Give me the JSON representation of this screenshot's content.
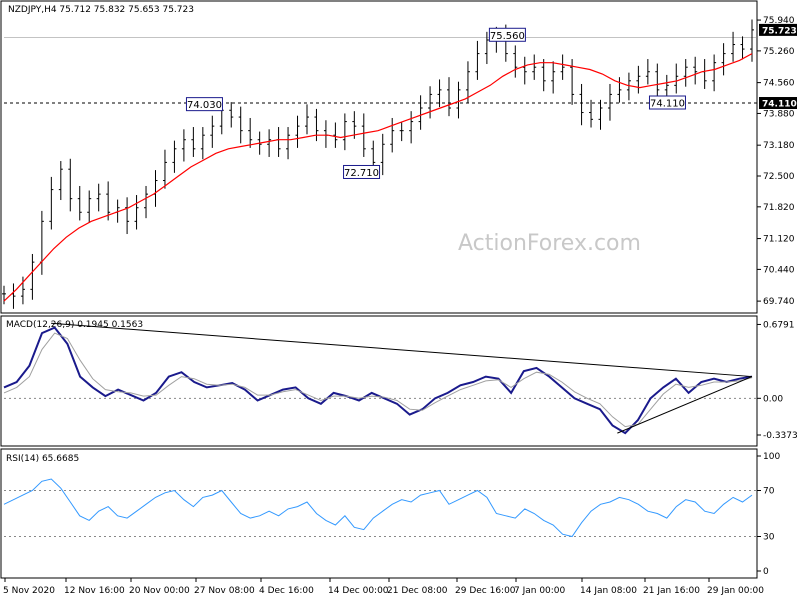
{
  "chart_data": [
    {
      "type": "ohlc",
      "panel": "price",
      "header": "NZDJPY,H4  75.712 75.832 75.653 75.723",
      "watermark": "ActionForex.com",
      "ylim": [
        69.5,
        76.25
      ],
      "y_ticks": [
        "75.940",
        "75.260",
        "74.560",
        "73.880",
        "73.180",
        "72.500",
        "71.820",
        "71.120",
        "70.440",
        "69.740"
      ],
      "last_price_tag": "75.723",
      "support_tag": "74.110",
      "support_level": 74.11,
      "annotations": [
        "75.560",
        "74.030",
        "72.710",
        "74.110"
      ],
      "series": [
        {
          "name": "",
          "color": "#000000",
          "values": [
            69.9,
            69.85,
            70.0,
            70.6,
            71.5,
            72.2,
            72.65,
            72.0,
            71.7,
            72.0,
            72.1,
            71.7,
            71.8,
            71.5,
            71.8,
            72.1,
            72.4,
            72.8,
            73.1,
            73.3,
            73.1,
            73.4,
            73.6,
            73.95,
            73.8,
            73.5,
            73.3,
            73.2,
            73.3,
            73.1,
            73.4,
            73.6,
            73.8,
            73.5,
            73.4,
            73.3,
            73.7,
            73.6,
            73.1,
            72.8,
            73.2,
            73.5,
            73.5,
            73.7,
            74.0,
            74.3,
            74.4,
            74.0,
            74.4,
            74.8,
            75.2,
            75.5,
            75.56,
            75.2,
            74.9,
            74.8,
            74.9,
            74.6,
            74.8,
            74.9,
            74.3,
            73.9,
            73.75,
            74.0,
            74.3,
            74.4,
            74.6,
            74.7,
            74.8,
            74.4,
            74.5,
            74.7,
            74.9,
            74.8,
            74.6,
            75.0,
            75.2,
            75.4,
            75.3,
            75.723
          ]
        },
        {
          "name": "",
          "color": "#ff0000",
          "values": [
            69.74,
            70.0,
            70.3,
            70.6,
            70.9,
            71.15,
            71.35,
            71.5,
            71.6,
            71.7,
            71.8,
            71.95,
            72.1,
            72.3,
            72.5,
            72.7,
            72.85,
            73.0,
            73.1,
            73.15,
            73.2,
            73.25,
            73.3,
            73.3,
            73.35,
            73.4,
            73.4,
            73.35,
            73.4,
            73.45,
            73.5,
            73.6,
            73.7,
            73.8,
            73.9,
            74.0,
            74.1,
            74.2,
            74.35,
            74.5,
            74.7,
            74.85,
            74.95,
            75.0,
            75.0,
            74.95,
            74.9,
            74.85,
            74.75,
            74.6,
            74.5,
            74.45,
            74.5,
            74.55,
            74.6,
            74.7,
            74.8,
            74.85,
            74.95,
            75.05,
            75.2
          ]
        }
      ]
    },
    {
      "type": "line",
      "panel": "macd",
      "header": "MACD(12,26,9) 0.1945 0.1563",
      "ylim": [
        -0.42,
        0.72
      ],
      "y_ticks": [
        "0.6791",
        "0.00",
        "-0.3373"
      ],
      "zero_level": 0.0,
      "series": [
        {
          "name": "",
          "color": "#1a1a8c",
          "values": [
            0.1,
            0.15,
            0.3,
            0.6,
            0.65,
            0.5,
            0.2,
            0.1,
            0.02,
            0.08,
            0.03,
            -0.02,
            0.05,
            0.2,
            0.24,
            0.15,
            0.1,
            0.12,
            0.14,
            0.08,
            -0.02,
            0.03,
            0.08,
            0.1,
            0.0,
            -0.05,
            0.05,
            0.02,
            -0.02,
            0.05,
            0.0,
            -0.05,
            -0.15,
            -0.1,
            0.0,
            0.05,
            0.12,
            0.15,
            0.2,
            0.18,
            0.05,
            0.25,
            0.28,
            0.2,
            0.1,
            0.0,
            -0.05,
            -0.1,
            -0.25,
            -0.32,
            -0.2,
            0.0,
            0.1,
            0.18,
            0.05,
            0.15,
            0.18,
            0.15,
            0.18,
            0.2
          ]
        },
        {
          "name": "",
          "color": "#a0a0a0",
          "values": [
            0.05,
            0.1,
            0.2,
            0.45,
            0.6,
            0.55,
            0.35,
            0.18,
            0.08,
            0.06,
            0.05,
            0.02,
            0.03,
            0.12,
            0.2,
            0.18,
            0.13,
            0.12,
            0.13,
            0.1,
            0.03,
            0.03,
            0.06,
            0.08,
            0.03,
            -0.02,
            0.02,
            0.02,
            0.0,
            0.02,
            0.01,
            -0.02,
            -0.1,
            -0.11,
            -0.04,
            0.02,
            0.08,
            0.12,
            0.16,
            0.17,
            0.1,
            0.18,
            0.24,
            0.22,
            0.15,
            0.06,
            0.0,
            -0.05,
            -0.17,
            -0.26,
            -0.24,
            -0.1,
            0.04,
            0.13,
            0.1,
            0.12,
            0.15,
            0.15,
            0.16,
            0.19
          ]
        }
      ],
      "trendlines": [
        {
          "from": [
            0.063,
            0.69
          ],
          "to": [
            1.0,
            0.2
          ]
        },
        {
          "from": [
            0.82,
            -0.32
          ],
          "to": [
            1.0,
            0.2
          ]
        }
      ]
    },
    {
      "type": "line",
      "panel": "rsi",
      "header": "RSI(14) 65.6685",
      "ylim": [
        0,
        100
      ],
      "y_ticks": [
        "100",
        "70",
        "30",
        "0"
      ],
      "levels": [
        70,
        30
      ],
      "series": [
        {
          "name": "",
          "color": "#3399ff",
          "values": [
            58,
            62,
            66,
            70,
            78,
            80,
            72,
            60,
            48,
            44,
            52,
            56,
            48,
            46,
            52,
            58,
            64,
            68,
            70,
            62,
            56,
            64,
            66,
            70,
            60,
            50,
            46,
            48,
            52,
            48,
            54,
            56,
            60,
            50,
            44,
            40,
            48,
            38,
            36,
            46,
            52,
            58,
            62,
            60,
            66,
            68,
            70,
            58,
            62,
            66,
            70,
            64,
            50,
            48,
            46,
            54,
            50,
            44,
            40,
            32,
            30,
            42,
            52,
            58,
            60,
            64,
            62,
            58,
            52,
            50,
            46,
            56,
            62,
            60,
            52,
            50,
            58,
            64,
            60,
            66
          ]
        }
      ]
    }
  ],
  "x_axis": {
    "tick_labels": [
      "5 Nov 2020",
      "12 Nov 16:00",
      "20 Nov 00:00",
      "27 Nov 08:00",
      "4 Dec 16:00",
      "14 Dec 00:00",
      "21 Dec 08:00",
      "29 Dec 16:00",
      "7 Jan 00:00",
      "14 Jan 08:00",
      "21 Jan 16:00",
      "29 Jan 00:00"
    ]
  },
  "colors": {
    "price_bars": "#000000",
    "moving_average": "#ff0000",
    "macd_line": "#1a1a8c",
    "signal_line": "#a0a0a0",
    "rsi_line": "#3399ff",
    "tag_background": "#000000",
    "annotation_border": "#1a1a8c"
  }
}
